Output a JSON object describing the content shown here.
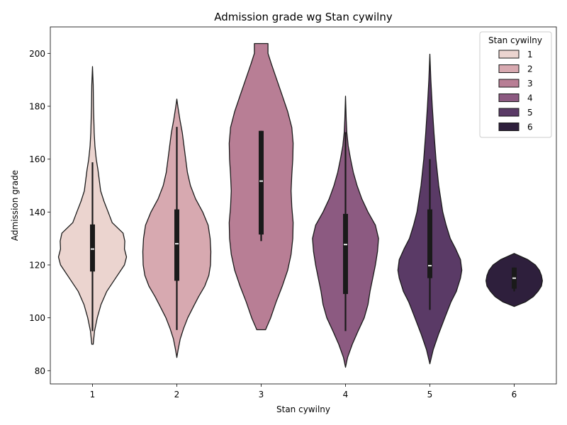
{
  "chart_data": {
    "type": "violin",
    "title": "Admission grade wg Stan cywilny",
    "xlabel": "Stan cywilny",
    "ylabel": "Admission grade",
    "categories": [
      "1",
      "2",
      "3",
      "4",
      "5",
      "6"
    ],
    "ylim": [
      75,
      210
    ],
    "yticks": [
      80,
      100,
      120,
      140,
      160,
      180,
      200
    ],
    "grid": false,
    "legend": {
      "title": "Stan cywilny",
      "placement": "top-right",
      "entries": [
        "1",
        "2",
        "3",
        "4",
        "5",
        "6"
      ]
    },
    "colors": [
      "#ebd4cf",
      "#d7a9b0",
      "#b87e95",
      "#8c5a81",
      "#5a3a66",
      "#2e1f3c"
    ],
    "series": [
      {
        "category": "1",
        "kde_min": 89.8,
        "kde_max": 195.3,
        "whisker_low": 95,
        "q1": 117.5,
        "median": 126,
        "q3": 135.3,
        "whisker_high": 158.8,
        "density_profile": [
          [
            90,
            0.02
          ],
          [
            95,
            0.06
          ],
          [
            100,
            0.14
          ],
          [
            105,
            0.25
          ],
          [
            110,
            0.42
          ],
          [
            115,
            0.68
          ],
          [
            120,
            0.94
          ],
          [
            123,
            1.0
          ],
          [
            126,
            0.94
          ],
          [
            129,
            0.95
          ],
          [
            132,
            0.9
          ],
          [
            136,
            0.58
          ],
          [
            140,
            0.46
          ],
          [
            144,
            0.34
          ],
          [
            148,
            0.24
          ],
          [
            152,
            0.2
          ],
          [
            156,
            0.16
          ],
          [
            160,
            0.11
          ],
          [
            165,
            0.07
          ],
          [
            170,
            0.05
          ],
          [
            175,
            0.04
          ],
          [
            180,
            0.03
          ],
          [
            188,
            0.02
          ],
          [
            195,
            0.0
          ]
        ]
      },
      {
        "category": "2",
        "kde_min": 85,
        "kde_max": 182.7,
        "whisker_low": 95.4,
        "q1": 114,
        "median": 128,
        "q3": 141,
        "whisker_high": 172.2,
        "density_profile": [
          [
            85,
            0.0
          ],
          [
            88,
            0.04
          ],
          [
            92,
            0.1
          ],
          [
            96,
            0.2
          ],
          [
            100,
            0.32
          ],
          [
            104,
            0.48
          ],
          [
            108,
            0.64
          ],
          [
            112,
            0.82
          ],
          [
            116,
            0.94
          ],
          [
            120,
            0.99
          ],
          [
            125,
            1.0
          ],
          [
            130,
            0.98
          ],
          [
            135,
            0.92
          ],
          [
            140,
            0.76
          ],
          [
            145,
            0.55
          ],
          [
            150,
            0.4
          ],
          [
            155,
            0.31
          ],
          [
            160,
            0.26
          ],
          [
            165,
            0.21
          ],
          [
            170,
            0.16
          ],
          [
            175,
            0.09
          ],
          [
            180,
            0.03
          ],
          [
            182.7,
            0.0
          ]
        ]
      },
      {
        "category": "3",
        "kde_min": 95.5,
        "kde_max": 203.7,
        "whisker_low": 129,
        "q1": 131.5,
        "median": 151.7,
        "q3": 170.7,
        "whisker_high": 170.7,
        "density_profile": [
          [
            95.5,
            0.13
          ],
          [
            100,
            0.28
          ],
          [
            106,
            0.44
          ],
          [
            112,
            0.62
          ],
          [
            118,
            0.78
          ],
          [
            124,
            0.88
          ],
          [
            130,
            0.93
          ],
          [
            136,
            0.94
          ],
          [
            142,
            0.9
          ],
          [
            148,
            0.88
          ],
          [
            154,
            0.9
          ],
          [
            160,
            0.93
          ],
          [
            166,
            0.94
          ],
          [
            172,
            0.9
          ],
          [
            178,
            0.78
          ],
          [
            184,
            0.62
          ],
          [
            190,
            0.46
          ],
          [
            196,
            0.3
          ],
          [
            200,
            0.2
          ],
          [
            203.7,
            0.2
          ]
        ]
      },
      {
        "category": "4",
        "kde_min": 81.3,
        "kde_max": 183.8,
        "whisker_low": 95,
        "q1": 109,
        "median": 127.7,
        "q3": 139.3,
        "whisker_high": 170.2,
        "density_profile": [
          [
            81.3,
            0.0
          ],
          [
            85,
            0.06
          ],
          [
            90,
            0.2
          ],
          [
            95,
            0.37
          ],
          [
            100,
            0.55
          ],
          [
            105,
            0.66
          ],
          [
            110,
            0.72
          ],
          [
            115,
            0.8
          ],
          [
            120,
            0.88
          ],
          [
            125,
            0.94
          ],
          [
            130,
            0.97
          ],
          [
            135,
            0.88
          ],
          [
            140,
            0.66
          ],
          [
            145,
            0.48
          ],
          [
            150,
            0.34
          ],
          [
            155,
            0.23
          ],
          [
            160,
            0.15
          ],
          [
            165,
            0.08
          ],
          [
            170,
            0.04
          ],
          [
            175,
            0.02
          ],
          [
            183.8,
            0.0
          ]
        ]
      },
      {
        "category": "5",
        "kde_min": 82.6,
        "kde_max": 199.7,
        "whisker_low": 103,
        "q1": 115,
        "median": 119.7,
        "q3": 141,
        "whisker_high": 160,
        "density_profile": [
          [
            82.6,
            0.0
          ],
          [
            88,
            0.1
          ],
          [
            94,
            0.26
          ],
          [
            100,
            0.44
          ],
          [
            106,
            0.62
          ],
          [
            110,
            0.78
          ],
          [
            115,
            0.9
          ],
          [
            118,
            0.94
          ],
          [
            122,
            0.9
          ],
          [
            126,
            0.76
          ],
          [
            130,
            0.6
          ],
          [
            135,
            0.48
          ],
          [
            140,
            0.38
          ],
          [
            150,
            0.26
          ],
          [
            160,
            0.18
          ],
          [
            170,
            0.12
          ],
          [
            180,
            0.07
          ],
          [
            190,
            0.03
          ],
          [
            199.7,
            0.0
          ]
        ]
      },
      {
        "category": "6",
        "kde_min": 104.3,
        "kde_max": 124.3,
        "whisker_low": 110,
        "q1": 111,
        "median": 115,
        "q3": 119,
        "whisker_high": 119,
        "density_profile": [
          [
            104.3,
            0.0
          ],
          [
            106,
            0.33
          ],
          [
            108,
            0.56
          ],
          [
            110,
            0.7
          ],
          [
            112,
            0.8
          ],
          [
            114,
            0.83
          ],
          [
            116,
            0.8
          ],
          [
            118,
            0.74
          ],
          [
            120,
            0.62
          ],
          [
            122,
            0.4
          ],
          [
            124.3,
            0.0
          ]
        ]
      }
    ]
  }
}
